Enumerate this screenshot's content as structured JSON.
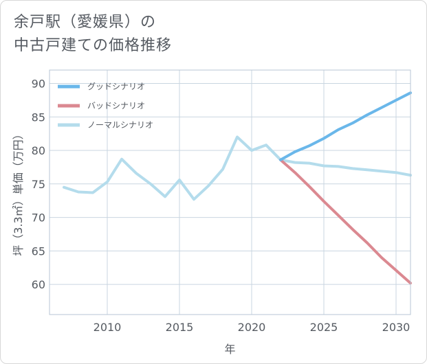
{
  "title_lines": [
    "余戸駅（愛媛県）の",
    "中古戸建ての価格推移"
  ],
  "chart_data": {
    "type": "line",
    "xlabel": "年",
    "ylabel": "坪（3.3㎡）単価（万円）",
    "xlim": [
      2006,
      2031
    ],
    "ylim": [
      55.5,
      92
    ],
    "x_ticks": [
      2010,
      2015,
      2020,
      2025,
      2030
    ],
    "y_ticks": [
      60,
      65,
      70,
      75,
      80,
      85,
      90
    ],
    "grid": true,
    "legend_position": "top-left",
    "series": [
      {
        "name": "グッドシナリオ",
        "color": "#6ab7ea",
        "x": [
          2022,
          2023,
          2024,
          2025,
          2026,
          2027,
          2028,
          2029,
          2030,
          2031
        ],
        "y": [
          78.6,
          79.8,
          80.7,
          81.8,
          83.1,
          84.1,
          85.3,
          86.4,
          87.5,
          88.6
        ]
      },
      {
        "name": "バッドシナリオ",
        "color": "#db8991",
        "x": [
          2022,
          2023,
          2024,
          2025,
          2026,
          2027,
          2028,
          2029,
          2030,
          2031
        ],
        "y": [
          78.6,
          76.7,
          74.6,
          72.4,
          70.3,
          68.2,
          66.2,
          64.0,
          62.1,
          60.2
        ]
      },
      {
        "name": "ノーマルシナリオ",
        "color": "#b4dcec",
        "x": [
          2007,
          2008,
          2009,
          2010,
          2011,
          2012,
          2013,
          2014,
          2015,
          2016,
          2017,
          2018,
          2019,
          2020,
          2021,
          2022,
          2023,
          2024,
          2025,
          2026,
          2027,
          2028,
          2029,
          2030,
          2031
        ],
        "y": [
          74.5,
          73.8,
          73.7,
          75.3,
          78.7,
          76.6,
          75.0,
          73.1,
          75.6,
          72.7,
          74.7,
          77.2,
          82.0,
          80.0,
          80.8,
          78.6,
          78.2,
          78.1,
          77.7,
          77.6,
          77.3,
          77.1,
          76.9,
          76.7,
          76.3
        ]
      }
    ]
  }
}
